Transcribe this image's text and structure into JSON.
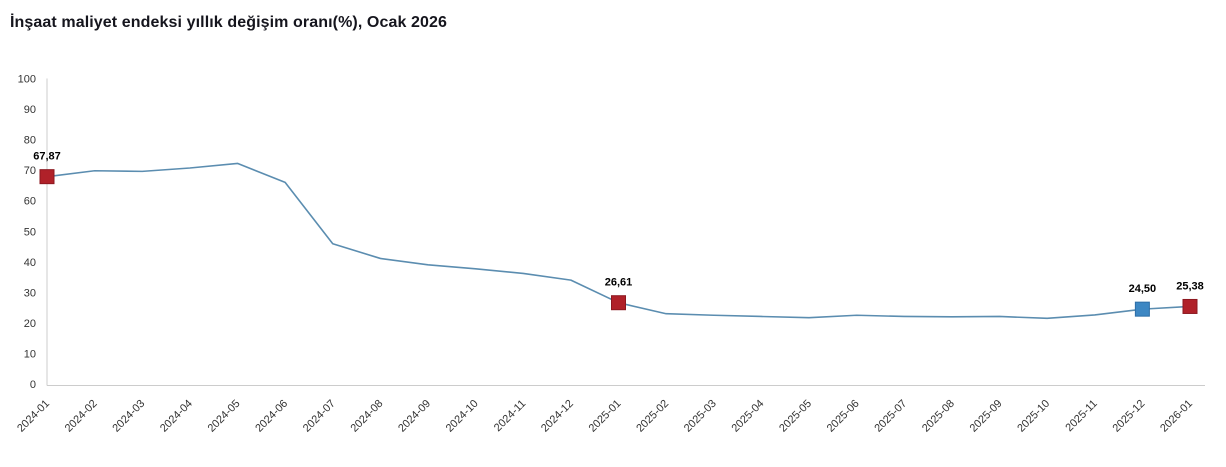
{
  "header": {
    "title": "İnşaat maliyet endeksi yıllık değişim oranı(%), Ocak 2026"
  },
  "chart_data": {
    "type": "line",
    "title": "İnşaat maliyet endeksi yıllık değişim oranı(%), Ocak 2026",
    "xlabel": "",
    "ylabel": "",
    "ylim": [
      0,
      100
    ],
    "y_ticks": [
      0,
      10,
      20,
      30,
      40,
      50,
      60,
      70,
      80,
      90,
      100
    ],
    "grid": false,
    "legend": "none",
    "x_label_rotation": -45,
    "line_color": "#5b8db0",
    "axis_color": "#cccccc",
    "tick_label_color": "#333333",
    "categories": [
      "2024-01",
      "2024-02",
      "2024-03",
      "2024-04",
      "2024-05",
      "2024-06",
      "2024-07",
      "2024-08",
      "2024-09",
      "2024-10",
      "2024-11",
      "2024-12",
      "2025-01",
      "2025-02",
      "2025-03",
      "2025-04",
      "2025-05",
      "2025-06",
      "2025-07",
      "2025-08",
      "2025-09",
      "2025-10",
      "2025-11",
      "2025-12",
      "2026-01"
    ],
    "values": [
      67.87,
      69.8,
      69.6,
      70.7,
      72.2,
      66.0,
      45.9,
      41.1,
      39.0,
      37.7,
      36.2,
      34.0,
      26.61,
      23.0,
      22.5,
      22.1,
      21.7,
      22.5,
      22.1,
      22.0,
      22.1,
      21.5,
      22.6,
      24.5,
      25.38
    ],
    "data_labels": [
      {
        "index": 0,
        "text": "67,87",
        "marker_color": "#b02129",
        "marker_stroke": "#8c1820"
      },
      {
        "index": 12,
        "text": "26,61",
        "marker_color": "#b02129",
        "marker_stroke": "#8c1820"
      },
      {
        "index": 23,
        "text": "24,50",
        "marker_color": "#3d87c3",
        "marker_stroke": "#2c6da6"
      },
      {
        "index": 24,
        "text": "25,38",
        "marker_color": "#b02129",
        "marker_stroke": "#8c1820"
      }
    ]
  }
}
